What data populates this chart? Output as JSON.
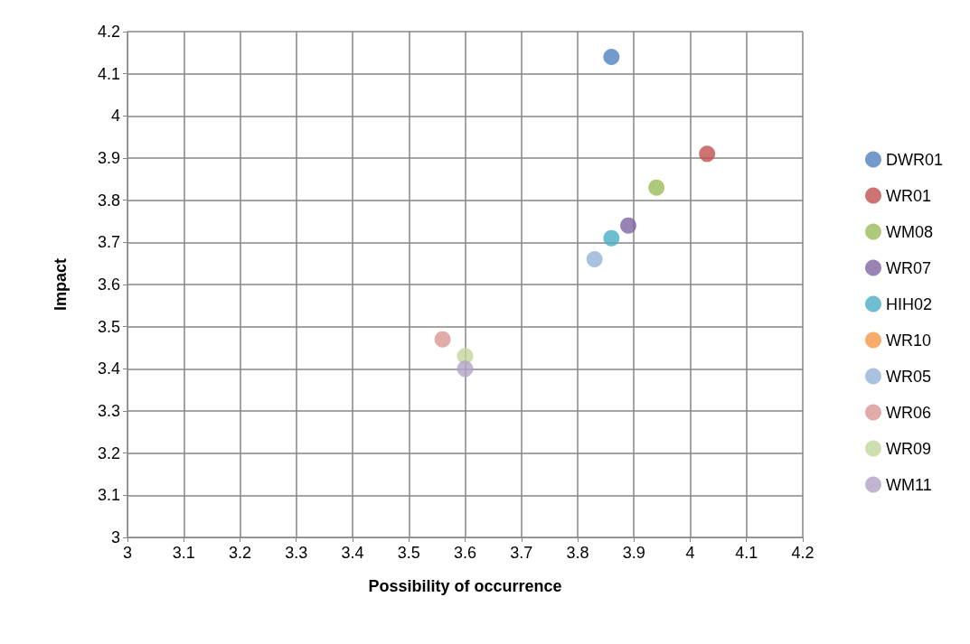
{
  "chart_data": {
    "type": "scatter",
    "xlabel": "Possibility of occurrence",
    "ylabel": "Impact",
    "xlim": [
      3,
      4.2
    ],
    "xticks": [
      3,
      3.1,
      3.2,
      3.3,
      3.4,
      3.5,
      3.6,
      3.7,
      3.8,
      3.9,
      4,
      4.1,
      4.2
    ],
    "ylim": [
      3,
      4.2
    ],
    "yticks": [
      3,
      3.1,
      3.2,
      3.3,
      3.4,
      3.5,
      3.6,
      3.7,
      3.8,
      3.9,
      4,
      4.1,
      4.2
    ],
    "grid": true,
    "legend": "right",
    "marker": "circle",
    "series": [
      {
        "name": "DWR01",
        "color": "#4f81bd",
        "x": [
          3.86
        ],
        "values": [
          4.14
        ]
      },
      {
        "name": "WR01",
        "color": "#c0504d",
        "x": [
          4.03
        ],
        "values": [
          3.91
        ]
      },
      {
        "name": "WM08",
        "color": "#9bbb59",
        "x": [
          3.94
        ],
        "values": [
          3.83
        ]
      },
      {
        "name": "WR07",
        "color": "#8064a2",
        "x": [
          3.89
        ],
        "values": [
          3.74
        ]
      },
      {
        "name": "HIH02",
        "color": "#4bacc6",
        "x": [
          3.86
        ],
        "values": [
          3.71
        ]
      },
      {
        "name": "WR10",
        "color": "#f79646",
        "x": [
          null
        ],
        "values": [
          null
        ]
      },
      {
        "name": "WR05",
        "color": "#95b3d7",
        "x": [
          3.83
        ],
        "values": [
          3.66
        ]
      },
      {
        "name": "WR06",
        "color": "#d99694",
        "x": [
          3.56
        ],
        "values": [
          3.47
        ]
      },
      {
        "name": "WR09",
        "color": "#c3d69b",
        "x": [
          3.6
        ],
        "values": [
          3.43
        ]
      },
      {
        "name": "WM11",
        "color": "#b3a2c7",
        "x": [
          3.6
        ],
        "values": [
          3.4
        ]
      }
    ]
  }
}
